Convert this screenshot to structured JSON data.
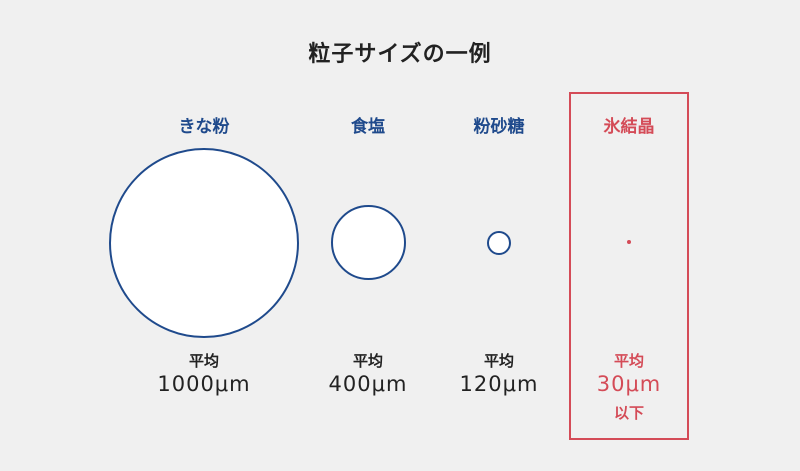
{
  "title": "粒子サイズの一例",
  "avg_label": "平均",
  "colors": {
    "blue": "#1f4a8c",
    "red": "#d44b57",
    "text": "#222222",
    "background": "#f0f0f0"
  },
  "particles": [
    {
      "name": "きな粉",
      "size": "1000μm",
      "note": ""
    },
    {
      "name": "食塩",
      "size": "400μm",
      "note": ""
    },
    {
      "name": "粉砂糖",
      "size": "120μm",
      "note": ""
    },
    {
      "name": "氷結晶",
      "size": "30μm",
      "note": "以下"
    }
  ]
}
